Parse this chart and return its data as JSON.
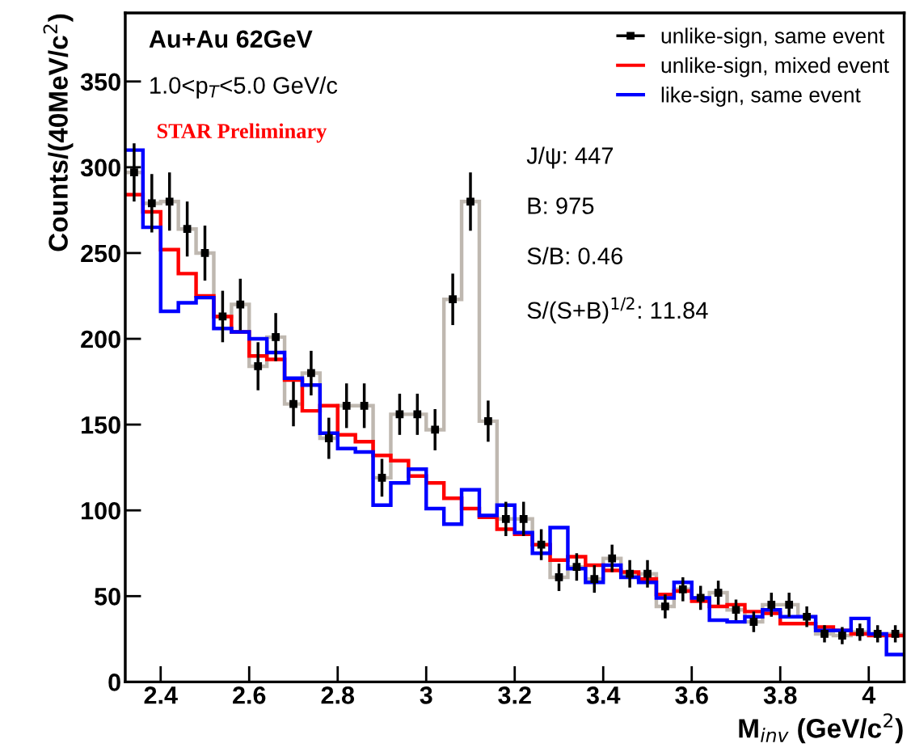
{
  "chart_data": {
    "type": "histogram",
    "xlabel": "M$_{inv}$ (GeV/c$^{2}$)",
    "ylabel": "Counts/(40MeV/c$^{2}$)",
    "bins": [
      2.32,
      2.36,
      2.4,
      2.44,
      2.48,
      2.52,
      2.56,
      2.6,
      2.64,
      2.68,
      2.72,
      2.76,
      2.8,
      2.84,
      2.88,
      2.92,
      2.96,
      3.0,
      3.04,
      3.08,
      3.12,
      3.16,
      3.2,
      3.24,
      3.28,
      3.32,
      3.36,
      3.4,
      3.44,
      3.48,
      3.52,
      3.56,
      3.6,
      3.64,
      3.68,
      3.72,
      3.76,
      3.8,
      3.84,
      3.88,
      3.92,
      3.96,
      4.0,
      4.04,
      4.08
    ],
    "series": [
      {
        "type": "scatter",
        "name": "unlike-sign, same event",
        "color": "#000000",
        "marker": "square",
        "x": [
          2.34,
          2.38,
          2.42,
          2.46,
          2.5,
          2.54,
          2.58,
          2.62,
          2.66,
          2.7,
          2.74,
          2.78,
          2.82,
          2.86,
          2.9,
          2.94,
          2.98,
          3.02,
          3.06,
          3.1,
          3.14,
          3.18,
          3.22,
          3.26,
          3.3,
          3.34,
          3.38,
          3.42,
          3.46,
          3.5,
          3.54,
          3.58,
          3.62,
          3.66,
          3.7,
          3.74,
          3.78,
          3.82,
          3.86,
          3.9,
          3.94,
          3.98,
          4.02,
          4.06
        ],
        "values": [
          297,
          279,
          280,
          264,
          250,
          213,
          220,
          184,
          201,
          162,
          180,
          142,
          161,
          161,
          119,
          156,
          156,
          147,
          223,
          280,
          152,
          95,
          95,
          80,
          61,
          67,
          60,
          72,
          63,
          63,
          44,
          54,
          49,
          52,
          42,
          35,
          45,
          45,
          38,
          28,
          27,
          29,
          28,
          28
        ],
        "errors": [
          17,
          17,
          17,
          16,
          16,
          15,
          15,
          14,
          14,
          13,
          13,
          12,
          13,
          13,
          11,
          12,
          12,
          12,
          15,
          17,
          12,
          10,
          10,
          9,
          8,
          8,
          8,
          8,
          8,
          8,
          7,
          7,
          7,
          7,
          6,
          6,
          7,
          7,
          6,
          5,
          5,
          5,
          5,
          5
        ]
      },
      {
        "color": "#bfb8b0",
        "values": [
          297,
          279,
          280,
          264,
          250,
          213,
          220,
          184,
          201,
          162,
          180,
          142,
          161,
          161,
          119,
          156,
          156,
          147,
          223,
          280,
          152,
          95,
          95,
          80,
          61,
          67,
          60,
          72,
          63,
          63,
          44,
          54,
          49,
          52,
          42,
          35,
          45,
          45,
          38,
          28,
          27,
          29,
          28,
          28
        ]
      },
      {
        "name": "unlike-sign, mixed event",
        "color": "#ff0000",
        "values": [
          284,
          274,
          252,
          238,
          225,
          213,
          204,
          190,
          188,
          176,
          158,
          161,
          144,
          140,
          132,
          129,
          120,
          116,
          107,
          101,
          96,
          89,
          86,
          80,
          71,
          73,
          68,
          65,
          64,
          60,
          51,
          53,
          47,
          44,
          45,
          41,
          40,
          34,
          34,
          32,
          30,
          28,
          27,
          27
        ]
      },
      {
        "name": "like-sign, same event",
        "color": "#0000ff",
        "values": [
          310,
          265,
          216,
          221,
          224,
          206,
          204,
          200,
          192,
          177,
          173,
          145,
          136,
          134,
          103,
          116,
          124,
          101,
          92,
          112,
          97,
          103,
          87,
          75,
          90,
          66,
          58,
          68,
          61,
          58,
          49,
          58,
          49,
          36,
          35,
          38,
          42,
          38,
          38,
          30,
          30,
          37,
          28,
          16
        ]
      }
    ],
    "xlim": [
      2.32,
      4.08
    ],
    "ylim": [
      0,
      390
    ],
    "xticks": [
      2.4,
      2.6,
      2.8,
      3,
      3.2,
      3.4,
      3.6,
      3.8,
      4
    ],
    "yticks": [
      0,
      50,
      100,
      150,
      200,
      250,
      300,
      350
    ],
    "legend": "top right",
    "annotations": [
      "Au+Au 62GeV",
      "1.0<p$_{T}$<5.0 GeV/c",
      "STAR Preliminary",
      "J/ψ: 447",
      "B: 975",
      "S/B: 0.46",
      "S/(S+B)$^{1/2}$: 11.84"
    ]
  }
}
